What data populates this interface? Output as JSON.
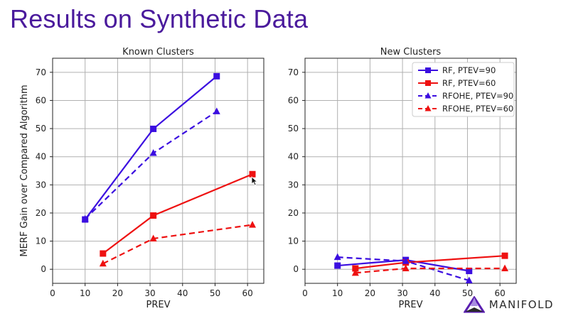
{
  "slide": {
    "title": "Results on Synthetic Data"
  },
  "brand": {
    "name": "MANIFOLD"
  },
  "chart_data": [
    {
      "type": "line",
      "title": "Known Clusters",
      "xlabel": "PREV",
      "ylabel": "MERF Gain over Compared Algorithm",
      "xlim": [
        0,
        65
      ],
      "ylim": [
        -5,
        75
      ],
      "xticks": [
        0,
        10,
        20,
        30,
        40,
        50,
        60
      ],
      "yticks": [
        0,
        10,
        20,
        30,
        40,
        50,
        60,
        70
      ],
      "grid": true,
      "series": [
        {
          "name": "RF, PTEV=90",
          "color": "#3b0ee0",
          "dash": "solid",
          "marker": "square",
          "points": [
            [
              10,
              17.7
            ],
            [
              31,
              49.9
            ],
            [
              50.5,
              68.6
            ]
          ]
        },
        {
          "name": "RF, PTEV=60",
          "color": "#ee1111",
          "dash": "solid",
          "marker": "square",
          "points": [
            [
              15.5,
              5.6
            ],
            [
              31,
              19.1
            ],
            [
              61.5,
              33.8
            ]
          ]
        },
        {
          "name": "RFOHE, PTEV=90",
          "color": "#3b0ee0",
          "dash": "dashed",
          "marker": "triangle",
          "points": [
            [
              10,
              17.9
            ],
            [
              31,
              41.3
            ],
            [
              50.5,
              56.1
            ]
          ]
        },
        {
          "name": "RFOHE, PTEV=60",
          "color": "#ee1111",
          "dash": "dashed",
          "marker": "triangle",
          "points": [
            [
              15.5,
              2.0
            ],
            [
              31,
              10.9
            ],
            [
              61.5,
              15.8
            ]
          ]
        }
      ]
    },
    {
      "type": "line",
      "title": "New Clusters",
      "xlabel": "PREV",
      "ylabel": "",
      "xlim": [
        0,
        65
      ],
      "ylim": [
        -5,
        75
      ],
      "xticks": [
        0,
        10,
        20,
        30,
        40,
        50,
        60
      ],
      "yticks": [
        0,
        10,
        20,
        30,
        40,
        50,
        60,
        70
      ],
      "grid": true,
      "legend": "top-right",
      "series": [
        {
          "name": "RF, PTEV=90",
          "color": "#3b0ee0",
          "dash": "solid",
          "marker": "square",
          "points": [
            [
              10,
              1.3
            ],
            [
              31,
              3.3
            ],
            [
              50.5,
              -0.6
            ]
          ]
        },
        {
          "name": "RF, PTEV=60",
          "color": "#ee1111",
          "dash": "solid",
          "marker": "square",
          "points": [
            [
              15.5,
              0.3
            ],
            [
              31,
              2.4
            ],
            [
              61.5,
              4.8
            ]
          ]
        },
        {
          "name": "RFOHE, PTEV=90",
          "color": "#3b0ee0",
          "dash": "dashed",
          "marker": "triangle",
          "points": [
            [
              10,
              4.3
            ],
            [
              31,
              2.9
            ],
            [
              50.5,
              -4.0
            ]
          ]
        },
        {
          "name": "RFOHE, PTEV=60",
          "color": "#ee1111",
          "dash": "dashed",
          "marker": "triangle",
          "points": [
            [
              15.5,
              -1.3
            ],
            [
              31,
              0.3
            ],
            [
              61.5,
              0.3
            ]
          ]
        }
      ]
    }
  ]
}
